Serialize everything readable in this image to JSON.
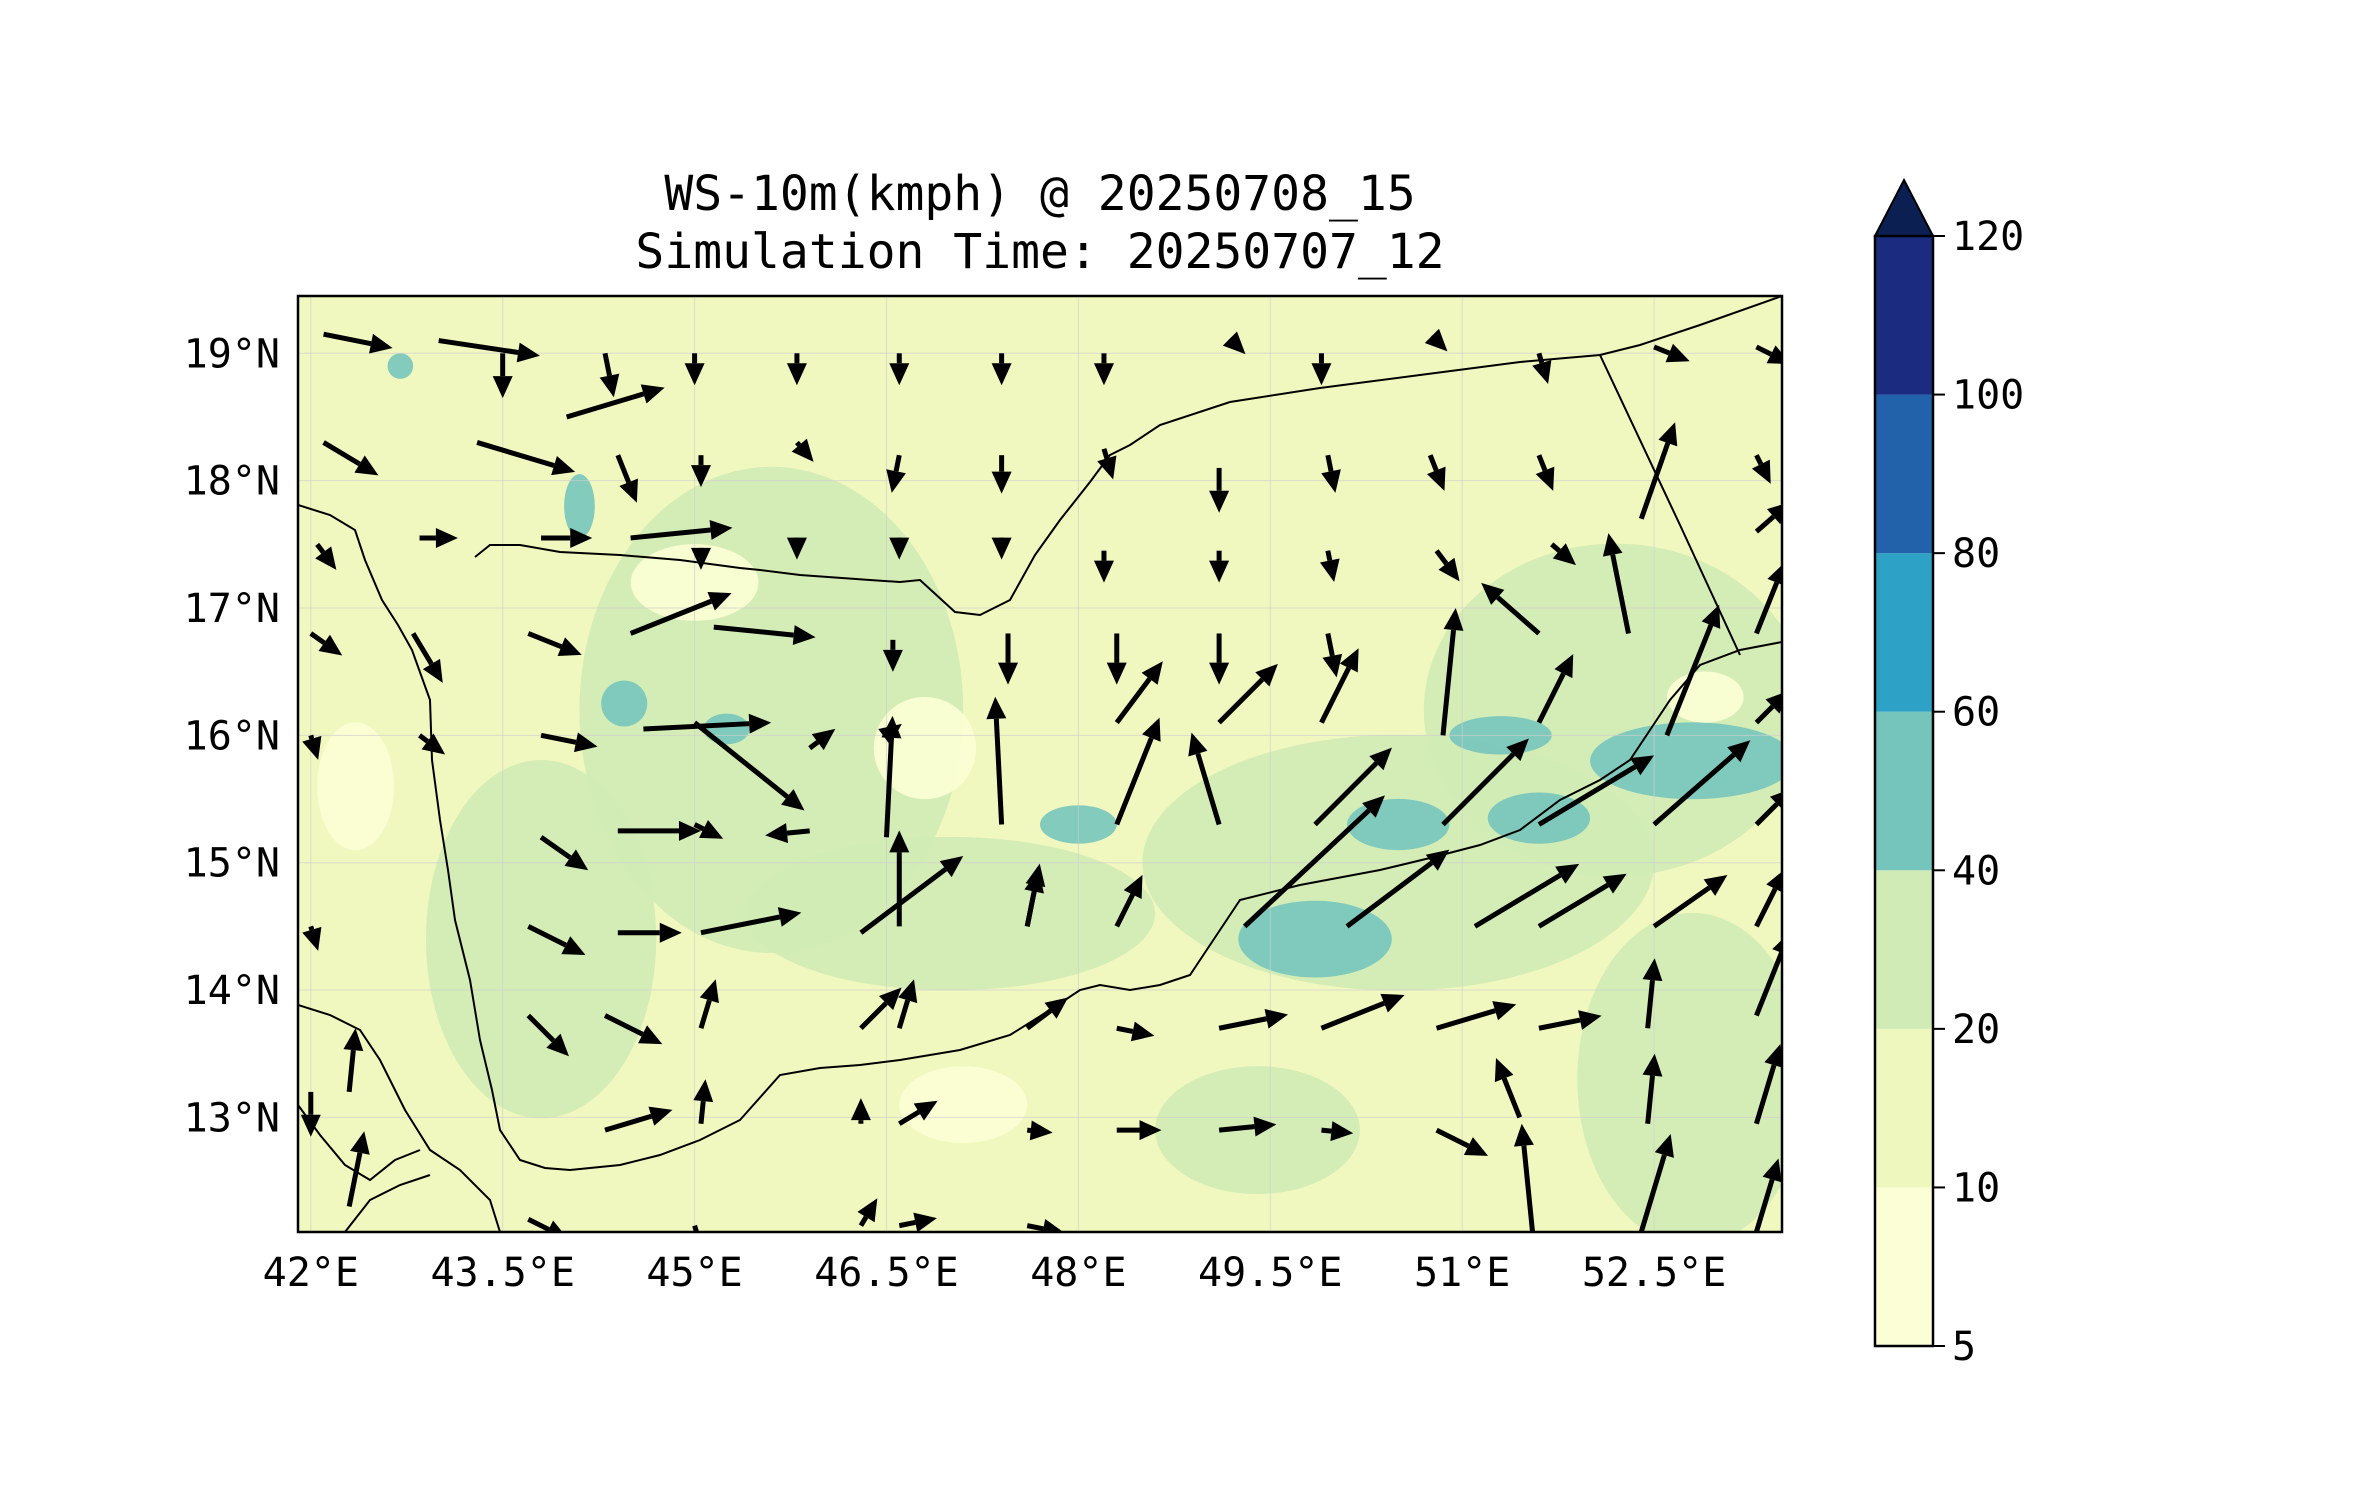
{
  "title": {
    "line1": "WS-10m(kmph) @ 20250708_15",
    "line2": "Simulation Time: 20250707_12"
  },
  "map": {
    "projection": "PlateCarree",
    "extent": {
      "lon_min": 41.9,
      "lon_max": 53.5,
      "lat_min": 12.1,
      "lat_max": 19.45
    },
    "gridlines": true,
    "lon_ticks": [
      {
        "value": 42.0,
        "label": "42°E"
      },
      {
        "value": 43.5,
        "label": "43.5°E"
      },
      {
        "value": 45.0,
        "label": "45°E"
      },
      {
        "value": 46.5,
        "label": "46.5°E"
      },
      {
        "value": 48.0,
        "label": "48°E"
      },
      {
        "value": 49.5,
        "label": "49.5°E"
      },
      {
        "value": 51.0,
        "label": "51°E"
      },
      {
        "value": 52.5,
        "label": "52.5°E"
      }
    ],
    "lat_ticks": [
      {
        "value": 19.0,
        "label": "19°N"
      },
      {
        "value": 18.0,
        "label": "18°N"
      },
      {
        "value": 17.0,
        "label": "17°N"
      },
      {
        "value": 16.0,
        "label": "16°N"
      },
      {
        "value": 15.0,
        "label": "15°N"
      },
      {
        "value": 14.0,
        "label": "14°N"
      },
      {
        "value": 13.0,
        "label": "13°N"
      }
    ],
    "background_color": "#f1f8bf",
    "border_color": "#000000"
  },
  "colorbar": {
    "levels": [
      5,
      10,
      20,
      40,
      60,
      80,
      100,
      120
    ],
    "labels": [
      "5",
      "10",
      "20",
      "40",
      "60",
      "80",
      "100",
      "120"
    ],
    "colors": [
      "#fcfed5",
      "#eef7bd",
      "#d0ebb5",
      "#75c5bc",
      "#2ea2c6",
      "#2162aa",
      "#1b2b7f"
    ],
    "extend_color": "#0b1f52",
    "extend": "max"
  },
  "wind_field": {
    "units": "kmph",
    "magnitude_patches": [
      {
        "lon": 45.6,
        "lat": 16.2,
        "r_lon": 1.5,
        "r_lat": 1.9,
        "level": 2
      },
      {
        "lon": 43.8,
        "lat": 14.4,
        "r_lon": 0.9,
        "r_lat": 1.4,
        "level": 2
      },
      {
        "lon": 47.0,
        "lat": 14.6,
        "r_lon": 1.6,
        "r_lat": 0.6,
        "level": 2
      },
      {
        "lon": 50.5,
        "lat": 15.0,
        "r_lon": 2.0,
        "r_lat": 1.0,
        "level": 2
      },
      {
        "lon": 52.2,
        "lat": 16.2,
        "r_lon": 1.5,
        "r_lat": 1.3,
        "level": 2
      },
      {
        "lon": 52.8,
        "lat": 13.3,
        "r_lon": 0.9,
        "r_lat": 1.3,
        "level": 2
      },
      {
        "lon": 49.4,
        "lat": 12.9,
        "r_lon": 0.8,
        "r_lat": 0.5,
        "level": 2
      },
      {
        "lon": 44.1,
        "lat": 17.8,
        "r_lon": 0.12,
        "r_lat": 0.25,
        "level": 3
      },
      {
        "lon": 44.45,
        "lat": 16.25,
        "r_lon": 0.18,
        "r_lat": 0.18,
        "level": 3
      },
      {
        "lon": 45.25,
        "lat": 16.05,
        "r_lon": 0.18,
        "r_lat": 0.12,
        "level": 3
      },
      {
        "lon": 48.0,
        "lat": 15.3,
        "r_lon": 0.3,
        "r_lat": 0.15,
        "level": 3
      },
      {
        "lon": 49.85,
        "lat": 14.4,
        "r_lon": 0.6,
        "r_lat": 0.3,
        "level": 3
      },
      {
        "lon": 50.5,
        "lat": 15.3,
        "r_lon": 0.4,
        "r_lat": 0.2,
        "level": 3
      },
      {
        "lon": 51.3,
        "lat": 16.0,
        "r_lon": 0.4,
        "r_lat": 0.15,
        "level": 3
      },
      {
        "lon": 51.6,
        "lat": 15.35,
        "r_lon": 0.4,
        "r_lat": 0.2,
        "level": 3
      },
      {
        "lon": 52.8,
        "lat": 15.8,
        "r_lon": 0.8,
        "r_lat": 0.3,
        "level": 3
      },
      {
        "lon": 42.7,
        "lat": 18.9,
        "r_lon": 0.1,
        "r_lat": 0.1,
        "level": 3
      },
      {
        "lon": 45.0,
        "lat": 17.2,
        "r_lon": 0.5,
        "r_lat": 0.3,
        "level": 0
      },
      {
        "lon": 46.8,
        "lat": 15.9,
        "r_lon": 0.4,
        "r_lat": 0.4,
        "level": 0
      },
      {
        "lon": 47.1,
        "lat": 13.1,
        "r_lon": 0.5,
        "r_lat": 0.3,
        "level": 0
      },
      {
        "lon": 42.35,
        "lat": 15.6,
        "r_lon": 0.3,
        "r_lat": 0.5,
        "level": 0
      },
      {
        "lon": 52.9,
        "lat": 16.3,
        "r_lon": 0.3,
        "r_lat": 0.2,
        "level": 0
      }
    ],
    "vectors": [
      {
        "lon": 42.1,
        "lat": 19.15,
        "u": 1,
        "v": -0.2,
        "len": 0.55
      },
      {
        "lon": 43.0,
        "lat": 19.1,
        "u": 1,
        "v": -0.15,
        "len": 0.8
      },
      {
        "lon": 43.5,
        "lat": 19.0,
        "u": 0,
        "v": -1,
        "len": 0.35
      },
      {
        "lon": 44.3,
        "lat": 19.0,
        "u": 0.2,
        "v": -1,
        "len": 0.35
      },
      {
        "lon": 45.0,
        "lat": 19.0,
        "u": 0,
        "v": -1,
        "len": 0.25
      },
      {
        "lon": 45.8,
        "lat": 19.0,
        "u": 0,
        "v": -1,
        "len": 0.25
      },
      {
        "lon": 46.6,
        "lat": 19.0,
        "u": 0,
        "v": -1,
        "len": 0.25
      },
      {
        "lon": 47.4,
        "lat": 19.0,
        "u": 0,
        "v": -1,
        "len": 0.25
      },
      {
        "lon": 48.2,
        "lat": 19.0,
        "u": 0,
        "v": -1,
        "len": 0.25
      },
      {
        "lon": 49.2,
        "lat": 19.1,
        "u": 0.5,
        "v": -0.5,
        "len": 0.15
      },
      {
        "lon": 49.9,
        "lat": 19.0,
        "u": 0,
        "v": -1,
        "len": 0.25
      },
      {
        "lon": 50.8,
        "lat": 19.1,
        "u": 0.5,
        "v": -0.5,
        "len": 0.12
      },
      {
        "lon": 51.6,
        "lat": 19.0,
        "u": 0.3,
        "v": -1,
        "len": 0.25
      },
      {
        "lon": 52.5,
        "lat": 19.05,
        "u": 1,
        "v": -0.4,
        "len": 0.3
      },
      {
        "lon": 53.3,
        "lat": 19.05,
        "u": 1,
        "v": -0.5,
        "len": 0.3
      },
      {
        "lon": 42.1,
        "lat": 18.3,
        "u": 1,
        "v": -0.6,
        "len": 0.5
      },
      {
        "lon": 43.3,
        "lat": 18.3,
        "u": 1,
        "v": -0.3,
        "len": 0.8
      },
      {
        "lon": 44.0,
        "lat": 18.5,
        "u": 1,
        "v": 0.3,
        "len": 0.8
      },
      {
        "lon": 44.4,
        "lat": 18.2,
        "u": 0.4,
        "v": -1,
        "len": 0.4
      },
      {
        "lon": 45.05,
        "lat": 18.2,
        "u": 0,
        "v": -1,
        "len": 0.25
      },
      {
        "lon": 45.8,
        "lat": 18.3,
        "u": 0.6,
        "v": -0.7,
        "len": 0.2
      },
      {
        "lon": 46.6,
        "lat": 18.2,
        "u": -0.2,
        "v": -1,
        "len": 0.3
      },
      {
        "lon": 47.4,
        "lat": 18.2,
        "u": 0,
        "v": -1,
        "len": 0.3
      },
      {
        "lon": 48.2,
        "lat": 18.25,
        "u": 0.3,
        "v": -1,
        "len": 0.25
      },
      {
        "lon": 49.1,
        "lat": 18.1,
        "u": 0,
        "v": -1,
        "len": 0.35
      },
      {
        "lon": 49.95,
        "lat": 18.2,
        "u": 0.2,
        "v": -1,
        "len": 0.3
      },
      {
        "lon": 50.75,
        "lat": 18.2,
        "u": 0.4,
        "v": -1,
        "len": 0.3
      },
      {
        "lon": 51.6,
        "lat": 18.2,
        "u": 0.4,
        "v": -1,
        "len": 0.3
      },
      {
        "lon": 52.4,
        "lat": 17.7,
        "u": 0.35,
        "v": 1,
        "len": 0.8
      },
      {
        "lon": 53.3,
        "lat": 18.2,
        "u": 0.5,
        "v": -1,
        "len": 0.25
      },
      {
        "lon": 42.05,
        "lat": 17.5,
        "u": 0.6,
        "v": -0.8,
        "len": 0.25
      },
      {
        "lon": 42.85,
        "lat": 17.55,
        "u": 1,
        "v": 0,
        "len": 0.3
      },
      {
        "lon": 43.8,
        "lat": 17.55,
        "u": 1,
        "v": 0,
        "len": 0.4
      },
      {
        "lon": 44.5,
        "lat": 17.55,
        "u": 1,
        "v": 0.1,
        "len": 0.8
      },
      {
        "lon": 45.05,
        "lat": 17.45,
        "u": 0,
        "v": -1,
        "len": 0.15
      },
      {
        "lon": 45.8,
        "lat": 17.5,
        "u": 0,
        "v": -1,
        "len": 0.12
      },
      {
        "lon": 46.6,
        "lat": 17.5,
        "u": 0,
        "v": -1,
        "len": 0.12
      },
      {
        "lon": 47.4,
        "lat": 17.5,
        "u": 0,
        "v": -1,
        "len": 0.12
      },
      {
        "lon": 48.2,
        "lat": 17.45,
        "u": 0,
        "v": -1,
        "len": 0.25
      },
      {
        "lon": 49.1,
        "lat": 17.45,
        "u": 0,
        "v": -1,
        "len": 0.25
      },
      {
        "lon": 49.95,
        "lat": 17.45,
        "u": 0.2,
        "v": -1,
        "len": 0.25
      },
      {
        "lon": 50.8,
        "lat": 17.45,
        "u": 0.6,
        "v": -0.8,
        "len": 0.3
      },
      {
        "lon": 51.7,
        "lat": 17.5,
        "u": 0.7,
        "v": -0.6,
        "len": 0.25
      },
      {
        "lon": 52.3,
        "lat": 16.8,
        "u": -0.2,
        "v": 1,
        "len": 0.8
      },
      {
        "lon": 53.3,
        "lat": 17.6,
        "u": 0.8,
        "v": 0.7,
        "len": 0.35
      },
      {
        "lon": 42.0,
        "lat": 16.8,
        "u": 1,
        "v": -0.7,
        "len": 0.3
      },
      {
        "lon": 42.8,
        "lat": 16.8,
        "u": 0.6,
        "v": -1,
        "len": 0.45
      },
      {
        "lon": 43.7,
        "lat": 16.8,
        "u": 1,
        "v": -0.4,
        "len": 0.45
      },
      {
        "lon": 44.5,
        "lat": 16.8,
        "u": 1,
        "v": 0.4,
        "len": 0.85
      },
      {
        "lon": 45.15,
        "lat": 16.85,
        "u": 1,
        "v": -0.1,
        "len": 0.8
      },
      {
        "lon": 46.55,
        "lat": 16.75,
        "u": 0,
        "v": -1,
        "len": 0.25
      },
      {
        "lon": 47.45,
        "lat": 16.8,
        "u": 0,
        "v": -1,
        "len": 0.4
      },
      {
        "lon": 48.3,
        "lat": 16.8,
        "u": 0,
        "v": -1,
        "len": 0.4
      },
      {
        "lon": 49.1,
        "lat": 16.8,
        "u": 0,
        "v": -1,
        "len": 0.4
      },
      {
        "lon": 49.95,
        "lat": 16.8,
        "u": 0.2,
        "v": -1,
        "len": 0.35
      },
      {
        "lon": 50.85,
        "lat": 16.0,
        "u": 0.1,
        "v": 1,
        "len": 1.0
      },
      {
        "lon": 51.6,
        "lat": 16.8,
        "u": -0.8,
        "v": 0.7,
        "len": 0.6
      },
      {
        "lon": 52.6,
        "lat": 16.0,
        "u": 0.4,
        "v": 1,
        "len": 1.1
      },
      {
        "lon": 53.3,
        "lat": 16.8,
        "u": 0.4,
        "v": 1,
        "len": 0.6
      },
      {
        "lon": 42.0,
        "lat": 16.0,
        "u": 0.3,
        "v": -1,
        "len": 0.2
      },
      {
        "lon": 42.85,
        "lat": 16.0,
        "u": 0.8,
        "v": -0.6,
        "len": 0.25
      },
      {
        "lon": 43.8,
        "lat": 16.0,
        "u": 1,
        "v": -0.2,
        "len": 0.45
      },
      {
        "lon": 44.6,
        "lat": 16.05,
        "u": 1,
        "v": 0.05,
        "len": 1.0
      },
      {
        "lon": 45.0,
        "lat": 16.1,
        "u": 1,
        "v": -0.8,
        "len": 1.1
      },
      {
        "lon": 45.9,
        "lat": 15.9,
        "u": 0.8,
        "v": 0.6,
        "len": 0.25
      },
      {
        "lon": 46.5,
        "lat": 16.0,
        "u": 0.8,
        "v": 0.6,
        "len": 0.15
      },
      {
        "lon": 47.4,
        "lat": 15.3,
        "u": -0.05,
        "v": 1,
        "len": 1.0
      },
      {
        "lon": 48.3,
        "lat": 16.1,
        "u": 0.6,
        "v": 0.8,
        "len": 0.6
      },
      {
        "lon": 49.1,
        "lat": 16.1,
        "u": 0.7,
        "v": 0.7,
        "len": 0.65
      },
      {
        "lon": 49.9,
        "lat": 16.1,
        "u": 0.5,
        "v": 1,
        "len": 0.65
      },
      {
        "lon": 51.6,
        "lat": 16.1,
        "u": 0.5,
        "v": 1,
        "len": 0.6
      },
      {
        "lon": 53.3,
        "lat": 16.1,
        "u": 0.7,
        "v": 0.7,
        "len": 0.35
      },
      {
        "lon": 43.8,
        "lat": 15.2,
        "u": 1,
        "v": -0.7,
        "len": 0.45
      },
      {
        "lon": 44.4,
        "lat": 15.25,
        "u": 1,
        "v": 0,
        "len": 0.65
      },
      {
        "lon": 45.0,
        "lat": 15.3,
        "u": 1,
        "v": -0.5,
        "len": 0.25
      },
      {
        "lon": 45.9,
        "lat": 15.25,
        "u": -1,
        "v": -0.1,
        "len": 0.35
      },
      {
        "lon": 46.5,
        "lat": 15.2,
        "u": 0.05,
        "v": 1,
        "len": 0.95
      },
      {
        "lon": 47.6,
        "lat": 14.5,
        "u": 0.2,
        "v": 1,
        "len": 0.5
      },
      {
        "lon": 48.3,
        "lat": 15.3,
        "u": 0.4,
        "v": 1,
        "len": 0.9
      },
      {
        "lon": 49.1,
        "lat": 15.3,
        "u": -0.3,
        "v": 1,
        "len": 0.75
      },
      {
        "lon": 49.85,
        "lat": 15.3,
        "u": 0.7,
        "v": 0.7,
        "len": 0.85
      },
      {
        "lon": 50.85,
        "lat": 15.3,
        "u": 0.7,
        "v": 0.7,
        "len": 0.95
      },
      {
        "lon": 51.6,
        "lat": 15.3,
        "u": 1,
        "v": 0.6,
        "len": 1.05
      },
      {
        "lon": 52.5,
        "lat": 15.3,
        "u": 0.8,
        "v": 0.7,
        "len": 1.0
      },
      {
        "lon": 53.3,
        "lat": 15.3,
        "u": 0.7,
        "v": 0.7,
        "len": 0.4
      },
      {
        "lon": 42.0,
        "lat": 14.5,
        "u": 0.3,
        "v": -1,
        "len": 0.2
      },
      {
        "lon": 43.7,
        "lat": 14.5,
        "u": 1,
        "v": -0.5,
        "len": 0.5
      },
      {
        "lon": 44.4,
        "lat": 14.45,
        "u": 1,
        "v": 0,
        "len": 0.5
      },
      {
        "lon": 45.05,
        "lat": 14.45,
        "u": 1,
        "v": 0.2,
        "len": 0.8
      },
      {
        "lon": 46.3,
        "lat": 14.45,
        "u": 0.8,
        "v": 0.6,
        "len": 1.0
      },
      {
        "lon": 46.6,
        "lat": 14.5,
        "u": 0,
        "v": 1,
        "len": 0.75
      },
      {
        "lon": 47.6,
        "lat": 14.5,
        "u": 0.2,
        "v": 1,
        "len": 0.45
      },
      {
        "lon": 48.3,
        "lat": 14.5,
        "u": 0.5,
        "v": 1,
        "len": 0.45
      },
      {
        "lon": 49.3,
        "lat": 14.5,
        "u": 0.75,
        "v": 0.7,
        "len": 1.5
      },
      {
        "lon": 50.1,
        "lat": 14.5,
        "u": 0.8,
        "v": 0.6,
        "len": 1.0
      },
      {
        "lon": 51.1,
        "lat": 14.5,
        "u": 1,
        "v": 0.6,
        "len": 0.95
      },
      {
        "lon": 51.6,
        "lat": 14.5,
        "u": 1,
        "v": 0.6,
        "len": 0.8
      },
      {
        "lon": 52.5,
        "lat": 14.5,
        "u": 1,
        "v": 0.7,
        "len": 0.7
      },
      {
        "lon": 53.3,
        "lat": 14.5,
        "u": 0.5,
        "v": 1,
        "len": 0.5
      },
      {
        "lon": 42.3,
        "lat": 13.2,
        "u": 0.1,
        "v": 1,
        "len": 0.5
      },
      {
        "lon": 43.7,
        "lat": 13.8,
        "u": 0.7,
        "v": -0.7,
        "len": 0.45
      },
      {
        "lon": 44.3,
        "lat": 13.8,
        "u": 1,
        "v": -0.5,
        "len": 0.5
      },
      {
        "lon": 45.05,
        "lat": 13.7,
        "u": 0.3,
        "v": 1,
        "len": 0.4
      },
      {
        "lon": 46.3,
        "lat": 13.7,
        "u": 0.7,
        "v": 0.7,
        "len": 0.45
      },
      {
        "lon": 46.6,
        "lat": 13.7,
        "u": 0.3,
        "v": 1,
        "len": 0.4
      },
      {
        "lon": 47.6,
        "lat": 13.7,
        "u": 0.8,
        "v": 0.6,
        "len": 0.4
      },
      {
        "lon": 48.3,
        "lat": 13.7,
        "u": 1,
        "v": -0.2,
        "len": 0.3
      },
      {
        "lon": 49.1,
        "lat": 13.7,
        "u": 1,
        "v": 0.2,
        "len": 0.55
      },
      {
        "lon": 49.9,
        "lat": 13.7,
        "u": 1,
        "v": 0.4,
        "len": 0.7
      },
      {
        "lon": 50.8,
        "lat": 13.7,
        "u": 1,
        "v": 0.3,
        "len": 0.65
      },
      {
        "lon": 51.6,
        "lat": 13.7,
        "u": 1,
        "v": 0.2,
        "len": 0.5
      },
      {
        "lon": 52.45,
        "lat": 13.7,
        "u": 0.1,
        "v": 1,
        "len": 0.55
      },
      {
        "lon": 53.3,
        "lat": 13.8,
        "u": 0.4,
        "v": 1,
        "len": 0.7
      },
      {
        "lon": 42.0,
        "lat": 13.2,
        "u": 0,
        "v": -1,
        "len": 0.35
      },
      {
        "lon": 44.3,
        "lat": 12.9,
        "u": 1,
        "v": 0.3,
        "len": 0.55
      },
      {
        "lon": 45.05,
        "lat": 12.95,
        "u": 0.1,
        "v": 1,
        "len": 0.35
      },
      {
        "lon": 46.3,
        "lat": 12.95,
        "u": 0,
        "v": 1,
        "len": 0.2
      },
      {
        "lon": 46.6,
        "lat": 12.95,
        "u": 1,
        "v": 0.6,
        "len": 0.35
      },
      {
        "lon": 47.6,
        "lat": 12.9,
        "u": 1,
        "v": -0.1,
        "len": 0.2
      },
      {
        "lon": 48.3,
        "lat": 12.9,
        "u": 1,
        "v": 0,
        "len": 0.35
      },
      {
        "lon": 49.1,
        "lat": 12.9,
        "u": 1,
        "v": 0.1,
        "len": 0.45
      },
      {
        "lon": 49.9,
        "lat": 12.9,
        "u": 1,
        "v": -0.1,
        "len": 0.25
      },
      {
        "lon": 50.8,
        "lat": 12.9,
        "u": 1,
        "v": -0.5,
        "len": 0.45
      },
      {
        "lon": 51.45,
        "lat": 13.0,
        "u": -0.4,
        "v": 1,
        "len": 0.5
      },
      {
        "lon": 52.45,
        "lat": 12.95,
        "u": 0.1,
        "v": 1,
        "len": 0.55
      },
      {
        "lon": 53.3,
        "lat": 12.95,
        "u": 0.3,
        "v": 1,
        "len": 0.65
      },
      {
        "lon": 42.3,
        "lat": 12.3,
        "u": 0.2,
        "v": 1,
        "len": 0.6
      },
      {
        "lon": 43.7,
        "lat": 12.2,
        "u": 1,
        "v": -0.5,
        "len": 0.35
      },
      {
        "lon": 45.0,
        "lat": 12.15,
        "u": 0.3,
        "v": -1,
        "len": 0.25
      },
      {
        "lon": 46.3,
        "lat": 12.15,
        "u": 0.6,
        "v": 1,
        "len": 0.25
      },
      {
        "lon": 46.6,
        "lat": 12.15,
        "u": 1,
        "v": 0.2,
        "len": 0.3
      },
      {
        "lon": 47.6,
        "lat": 12.15,
        "u": 1,
        "v": -0.2,
        "len": 0.3
      },
      {
        "lon": 51.55,
        "lat": 12.1,
        "u": -0.1,
        "v": 1,
        "len": 0.85
      },
      {
        "lon": 52.4,
        "lat": 12.1,
        "u": 0.3,
        "v": 1,
        "len": 0.8
      },
      {
        "lon": 53.3,
        "lat": 12.1,
        "u": 0.3,
        "v": 1,
        "len": 0.6
      }
    ]
  }
}
